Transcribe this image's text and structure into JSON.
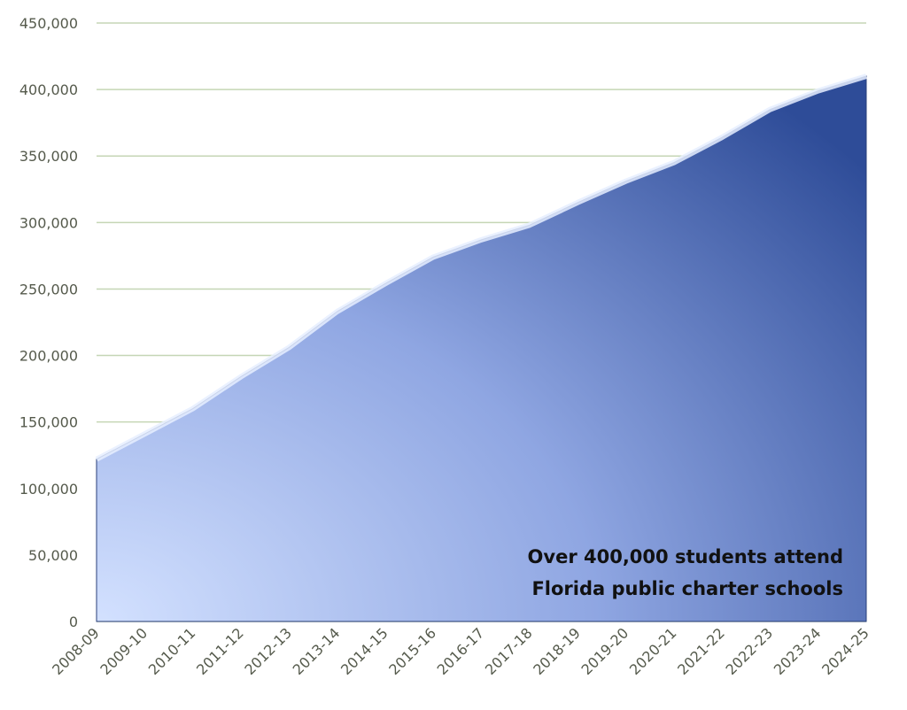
{
  "chart_data": {
    "type": "area",
    "categories": [
      "2008-09",
      "2009-10",
      "2010-11",
      "2011-12",
      "2012-13",
      "2013-14",
      "2014-15",
      "2015-16",
      "2016-17",
      "2017-18",
      "2018-19",
      "2019-20",
      "2020-21",
      "2021-22",
      "2022-23",
      "2023-24",
      "2024-25"
    ],
    "values": [
      122000,
      141000,
      160000,
      184000,
      206000,
      233000,
      254000,
      274000,
      287000,
      298000,
      315000,
      331000,
      345000,
      364000,
      385000,
      399000,
      410000
    ],
    "color": "#3b59a6",
    "ylim": [
      0,
      450000
    ],
    "yticks": [
      0,
      {
        "value": 50000,
        "label": "50,000"
      },
      {
        "value": 100000,
        "label": "100,000"
      },
      {
        "value": 150000,
        "label": "150,000"
      },
      {
        "value": 200000,
        "label": "200,000"
      },
      {
        "value": 250000,
        "label": "250,000"
      },
      {
        "value": 300000,
        "label": "300,000"
      },
      {
        "value": 350000,
        "label": "350,000"
      },
      {
        "value": 400000,
        "label": "400,000"
      },
      {
        "value": 450000,
        "label": "450,000"
      }
    ],
    "grid": true,
    "annotation": [
      "Over 400,000 students attend",
      "Florida public charter schools"
    ]
  }
}
